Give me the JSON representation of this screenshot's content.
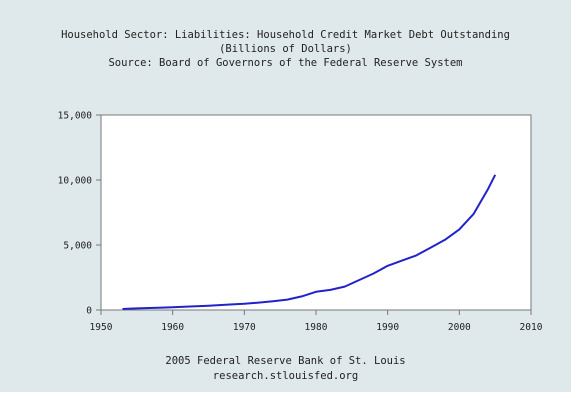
{
  "chart_data": {
    "type": "line",
    "title": "Household Sector: Liabilities: Household Credit Market Debt Outstanding",
    "subtitle": "(Billions of Dollars)",
    "source": "Source: Board of Governors of the Federal Reserve System",
    "footer": [
      "2005 Federal Reserve Bank of St. Louis",
      "research.stlouisfed.org"
    ],
    "xlabel": "",
    "ylabel": "",
    "xlim": [
      1950,
      2010
    ],
    "ylim": [
      0,
      15000
    ],
    "x_ticks": [
      1950,
      1960,
      1970,
      1980,
      1990,
      2000,
      2010
    ],
    "y_ticks": [
      0,
      5000,
      10000,
      15000
    ],
    "y_tick_labels": [
      "0",
      "5,000",
      "10,000",
      "15,000"
    ],
    "grid": false,
    "legend": "none",
    "series": [
      {
        "color": "#2222cc",
        "x": [
          1953,
          1955,
          1958,
          1960,
          1962,
          1965,
          1968,
          1970,
          1972,
          1974,
          1976,
          1978,
          1980,
          1982,
          1984,
          1986,
          1988,
          1990,
          1992,
          1994,
          1996,
          1998,
          2000,
          2002,
          2004,
          2005
        ],
        "y": [
          80,
          120,
          170,
          215,
          260,
          330,
          420,
          480,
          570,
          680,
          800,
          1050,
          1400,
          1550,
          1800,
          2300,
          2800,
          3400,
          3800,
          4200,
          4800,
          5400,
          6200,
          7400,
          9300,
          10400
        ]
      }
    ]
  }
}
